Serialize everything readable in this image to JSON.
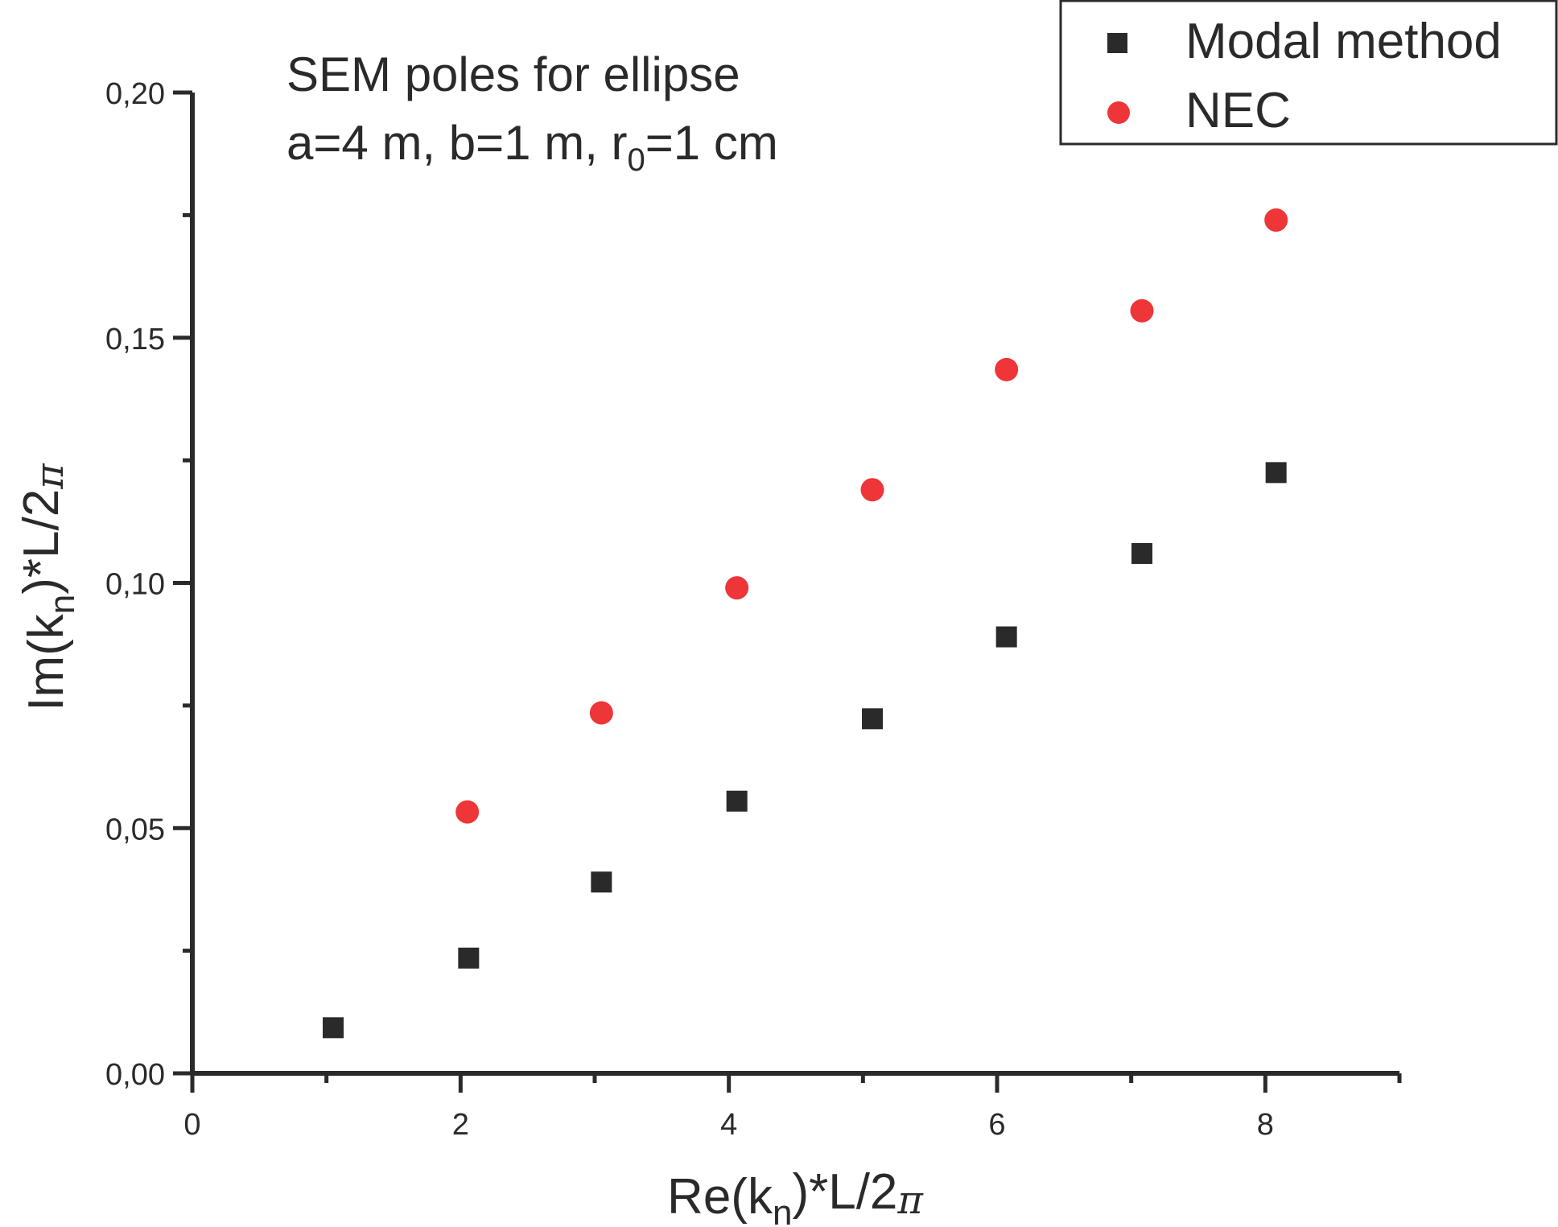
{
  "chart_data": {
    "type": "scatter",
    "title": "",
    "annotation": {
      "line1": "SEM poles for ellipse",
      "line2_prefix": "a=4 m,  b=1 m, r",
      "line2_sub": "0",
      "line2_suffix": "=1 cm"
    },
    "xlabel": {
      "main": "Re(k",
      "sub": "n",
      "rest": ")*L/2",
      "pi": "π"
    },
    "ylabel": {
      "main": "Im(k",
      "sub": "n",
      "rest": ")*L/2",
      "pi": "π"
    },
    "xlim": [
      0,
      9
    ],
    "ylim": [
      0,
      0.2
    ],
    "xticks": [
      0,
      2,
      4,
      6,
      8
    ],
    "xtick_labels": [
      "0",
      "2",
      "4",
      "6",
      "8"
    ],
    "xminor": [
      1,
      3,
      5,
      7,
      9
    ],
    "yticks": [
      0,
      0.05,
      0.1,
      0.15,
      0.2
    ],
    "ytick_labels": [
      "0,00",
      "0,05",
      "0,10",
      "0,15",
      "0,20"
    ],
    "yminor": [
      0.025,
      0.075,
      0.125,
      0.175
    ],
    "grid": false,
    "legend_position": "top-right",
    "series": [
      {
        "name": "Modal method",
        "marker": "square",
        "color": "#2a2a2a",
        "x": [
          1.05,
          2.06,
          3.05,
          4.06,
          5.07,
          6.07,
          7.08,
          8.08
        ],
        "y": [
          0.0093,
          0.0235,
          0.039,
          0.0555,
          0.0723,
          0.089,
          0.106,
          0.1225
        ]
      },
      {
        "name": "NEC",
        "marker": "circle",
        "color": "#ee3538",
        "x": [
          2.05,
          3.05,
          4.06,
          5.07,
          6.07,
          7.08,
          8.08
        ],
        "y": [
          0.0533,
          0.0735,
          0.099,
          0.119,
          0.1435,
          0.1555,
          0.174
        ]
      }
    ]
  }
}
